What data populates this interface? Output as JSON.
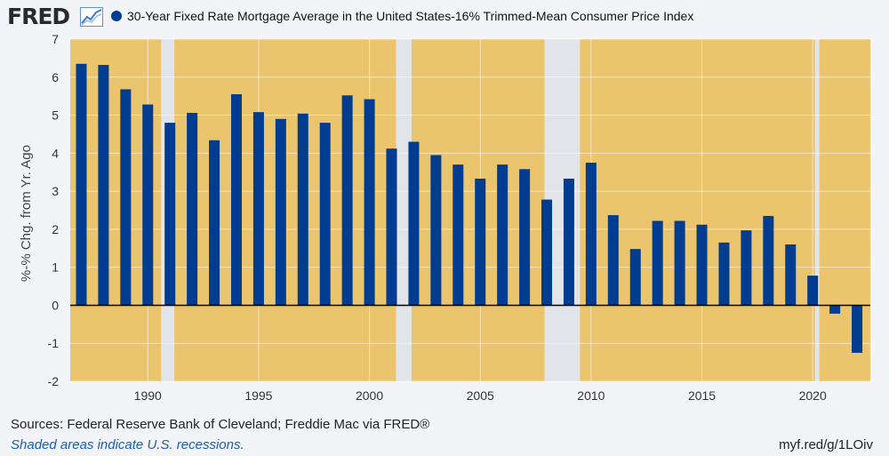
{
  "header": {
    "logo_text": "FRED",
    "legend_label": "30-Year Fixed Rate Mortgage Average in the United States-16% Trimmed-Mean Consumer Price Index"
  },
  "footer": {
    "sources": "Sources: Federal Reserve Bank of Cleveland; Freddie Mac via FRED®",
    "recession_note": "Shaded areas indicate U.S. recessions.",
    "short_url": "myf.red/g/1LOiv"
  },
  "colors": {
    "bar": "#003c8f",
    "plot_bg": "#ebc46e",
    "recession": "#e1e4e9",
    "page_bg": "#f2f4f7"
  },
  "chart_data": {
    "type": "bar",
    "title": "30-Year Fixed Rate Mortgage Average in the United States-16% Trimmed-Mean Consumer Price Index",
    "xlabel": "",
    "ylabel": "%-% Chg. from Yr. Ago",
    "ylim": [
      -2,
      7
    ],
    "xlim": [
      1986.5,
      2022.6
    ],
    "yticks": [
      -2,
      -1,
      0,
      1,
      2,
      3,
      4,
      5,
      6,
      7
    ],
    "xticks": [
      1990,
      1995,
      2000,
      2005,
      2010,
      2015,
      2020
    ],
    "grid": true,
    "recessions": [
      [
        1990.6,
        1991.2
      ],
      [
        2001.2,
        2001.9
      ],
      [
        2007.9,
        2009.5
      ],
      [
        2020.1,
        2020.3
      ]
    ],
    "x": [
      1987,
      1988,
      1989,
      1990,
      1991,
      1992,
      1993,
      1994,
      1995,
      1996,
      1997,
      1998,
      1999,
      2000,
      2001,
      2002,
      2003,
      2004,
      2005,
      2006,
      2007,
      2008,
      2009,
      2010,
      2011,
      2012,
      2013,
      2014,
      2015,
      2016,
      2017,
      2018,
      2019,
      2020,
      2021,
      2022
    ],
    "values": [
      6.35,
      6.32,
      5.68,
      5.28,
      4.8,
      5.06,
      4.34,
      5.55,
      5.08,
      4.9,
      5.04,
      4.8,
      5.52,
      5.42,
      4.12,
      4.3,
      3.95,
      3.7,
      3.33,
      3.7,
      3.58,
      2.78,
      3.33,
      3.75,
      2.37,
      1.48,
      2.22,
      2.22,
      2.12,
      1.65,
      1.97,
      2.35,
      1.6,
      0.78,
      -0.22,
      -1.25
    ]
  }
}
